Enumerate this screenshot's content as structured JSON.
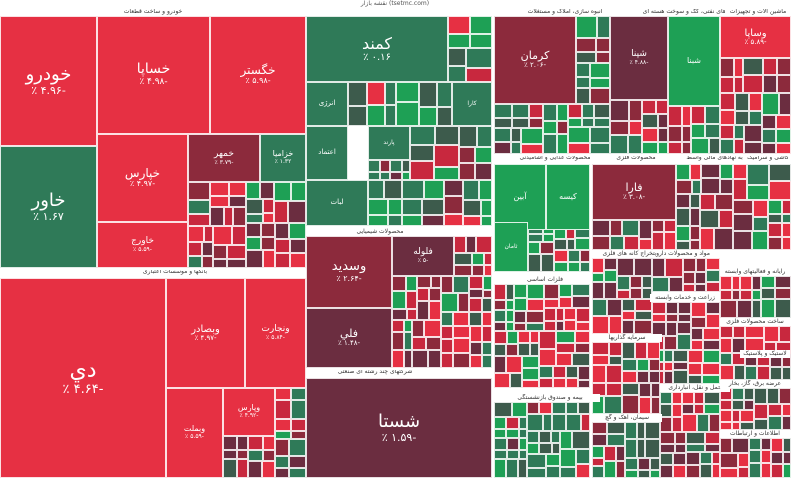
{
  "site_label": "نقشه بازار (tsetmc.com)",
  "colors": {
    "red_strong": "#e63043",
    "red_mid": "#c8283e",
    "red_dark": "#8c2a3c",
    "maroon": "#6b2d40",
    "green_strong": "#1ea055",
    "green_mid": "#2f7a58",
    "green_dark": "#3d5b4c",
    "divider": "#ffffff"
  },
  "sectors": [
    {
      "name": "خودرو و ساخت قطعات"
    },
    {
      "name": "محصولات شیمیایی"
    },
    {
      "name": "فلزات اساسی"
    },
    {
      "name": "بانکها و موسسات اعتباری"
    },
    {
      "name": "شرکتهای چند رشته ای صنعتی"
    },
    {
      "name": "محصولات فلزی"
    },
    {
      "name": "سیمان، آهک و گچ"
    },
    {
      "name": "استخراج کانه های فلزی"
    },
    {
      "name": "محصولات غذایی و آشامیدنی"
    },
    {
      "name": "فراورده های نفتی، کک و سوخت هسته ای"
    },
    {
      "name": "فعالیتهای کمکی به نهادهای مالی واسط"
    },
    {
      "name": "مواد و محصولات دارویی"
    },
    {
      "name": "حمل و نقل، انبارداری"
    },
    {
      "name": "سرمایه گذاریها"
    },
    {
      "name": "اطلاعات و ارتباطات"
    },
    {
      "name": "ساخت محصولات فلزی"
    },
    {
      "name": "لاستیک و پلاستیک"
    },
    {
      "name": "عرضه برق، گاز، بخار"
    },
    {
      "name": "کاشی و سرامیک"
    },
    {
      "name": "زراعت و خدمات وابسته"
    },
    {
      "name": "رایانه و فعالیتهای وابسته"
    },
    {
      "name": "انبوه سازی، املاک و مستغلات"
    },
    {
      "name": "ماشین آلات و تجهیزات"
    },
    {
      "name": "بیمه و صندوق بازنشستگی"
    }
  ],
  "tiles": [
    {
      "symbol": "خودرو",
      "change": "-۴.۹۶ ٪"
    },
    {
      "symbol": "خساپا",
      "change": "-۴.۹۸ ٪"
    },
    {
      "symbol": "خگستر",
      "change": "-۵.۹۸ ٪"
    },
    {
      "symbol": "خاور",
      "change": "۱.۶۷ ٪"
    },
    {
      "symbol": "خپارس",
      "change": "-۴.۹۷ ٪"
    },
    {
      "symbol": "خمهر",
      "change": "-۳.۷۹ ٪"
    },
    {
      "symbol": "خزامیا",
      "change": "۱.۳۲ ٪"
    },
    {
      "symbol": "خاورج",
      "change": "-۵.۵۹ ٪"
    },
    {
      "symbol": "دي",
      "change": "-۴.۶۴ ٪"
    },
    {
      "symbol": "وبصادر",
      "change": "-۴.۹۷ ٪"
    },
    {
      "symbol": "ونجارت",
      "change": "-۵.۸۴ ٪"
    },
    {
      "symbol": "وبملت",
      "change": "-۵.۵۹ ٪"
    },
    {
      "symbol": "وپارس",
      "change": "-۴.۹۲ ٪"
    },
    {
      "symbol": "کمند",
      "change": "۰.۱۶ ٪"
    },
    {
      "symbol": "وسديد",
      "change": "-۲.۶۴ ٪"
    },
    {
      "symbol": "فلوله",
      "change": "-۵ ٪"
    },
    {
      "symbol": "فلي",
      "change": "-۱.۴۸ ٪"
    },
    {
      "symbol": "شستا",
      "change": "-۱.۵۹ ٪"
    },
    {
      "symbol": "کرمان",
      "change": "-۲.۰۶ ٪"
    },
    {
      "symbol": "شپنا",
      "change": "-۴.۸۸ ٪"
    },
    {
      "symbol": "شبنا",
      "change": ""
    },
    {
      "symbol": "فارا",
      "change": "-۳.۰۸ ٪"
    },
    {
      "symbol": "وساپا",
      "change": "-۵.۸۹ ٪"
    },
    {
      "symbol": "آبين",
      "change": ""
    },
    {
      "symbol": "کيسه",
      "change": ""
    },
    {
      "symbol": "انرژی",
      "change": ""
    },
    {
      "symbol": "اعتماد",
      "change": ""
    },
    {
      "symbol": "لبات",
      "change": ""
    },
    {
      "symbol": "پارند",
      "change": ""
    },
    {
      "symbol": "کارا",
      "change": ""
    },
    {
      "symbol": "ثامان",
      "change": ""
    }
  ]
}
